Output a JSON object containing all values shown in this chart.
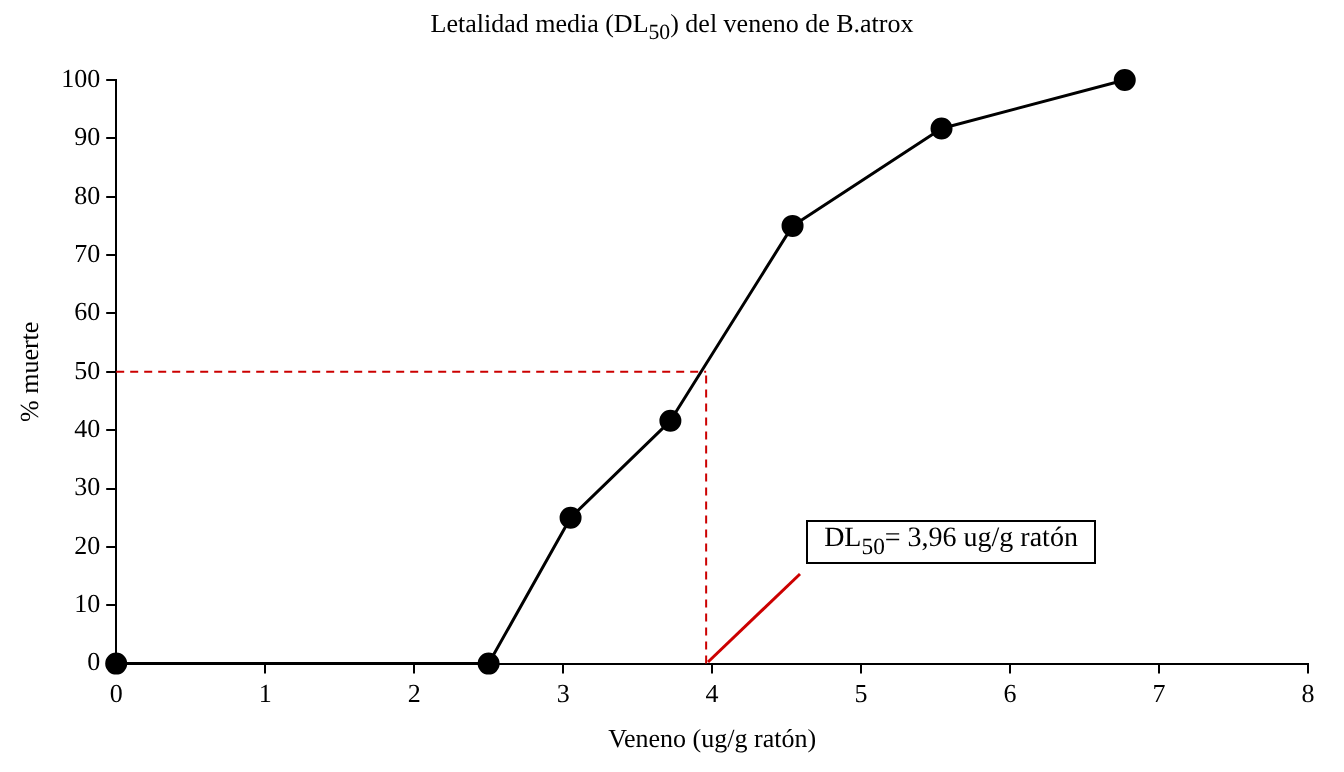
{
  "chart_data": {
    "type": "line",
    "title": "Letalidad media (DL$_{50}$) del veneno de B.atrox",
    "xlabel": "Veneno (ug/g ratón)",
    "ylabel": "% muerte",
    "x": [
      0,
      2.5,
      3.05,
      3.72,
      4.54,
      5.54,
      6.77
    ],
    "series": [
      {
        "color": "#000000",
        "values": [
          0,
          0,
          25,
          41.6,
          75,
          91.7,
          100
        ]
      }
    ],
    "xlim": [
      0,
      8
    ],
    "xticks": [
      0,
      1,
      2,
      3,
      4,
      5,
      6,
      7,
      8
    ],
    "ylim": [
      0,
      100
    ],
    "yticks": [
      0,
      10,
      20,
      30,
      40,
      50,
      60,
      70,
      80,
      90,
      100
    ],
    "grid": false,
    "legend": false,
    "marker": "circle",
    "line_style": "solid",
    "ref_lines": [
      {
        "axis": "x",
        "value": 3.96,
        "color": "#cc0000",
        "line_style": "dashed"
      },
      {
        "axis": "y",
        "value": 50,
        "color": "#cc0000",
        "line_style": "dashed"
      }
    ],
    "annotations": [
      {
        "text": "DL$_{50}$= 3,96 ug/g ratón",
        "x": 3.96,
        "y": 0
      }
    ]
  }
}
